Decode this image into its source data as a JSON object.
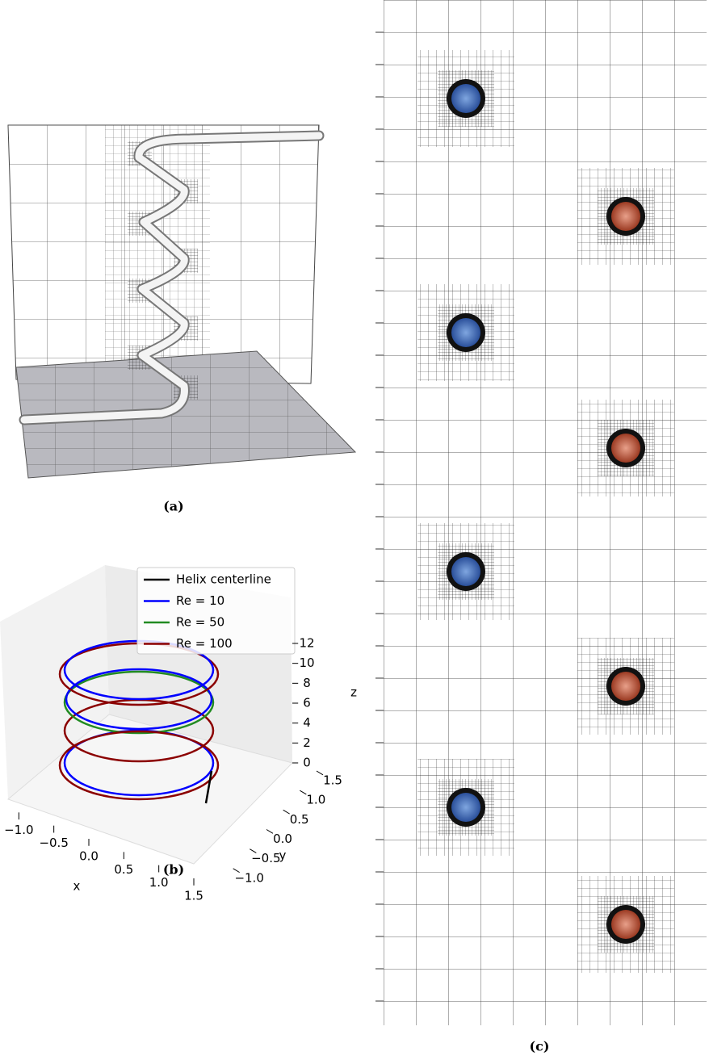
{
  "panels": [
    {
      "label": "(a)"
    },
    {
      "label": "(b)"
    },
    {
      "label": "(c)"
    }
  ],
  "chart_data": {
    "type": "line3d",
    "series": [
      {
        "name": "Helix centerline",
        "color": "#000000"
      },
      {
        "name": "Re = 10",
        "color": "#0000ff"
      },
      {
        "name": "Re = 50",
        "color": "#228b22"
      },
      {
        "name": "Re = 100",
        "color": "#8b0000"
      }
    ],
    "xlabel": "x",
    "ylabel": "y",
    "zlabel": "z",
    "xlim": [
      -1.5,
      1.5
    ],
    "ylim": [
      -1.5,
      1.5
    ],
    "zlim": [
      0,
      12
    ],
    "xticks": [
      {
        "value": -1,
        "label": "−1.0"
      },
      {
        "value": -0.5,
        "label": "−0.5"
      },
      {
        "value": 0,
        "label": "0.0"
      },
      0.5,
      {
        "value": 1,
        "label": "1.0"
      },
      1.5
    ],
    "yticks": [
      {
        "value": -1,
        "label": "−1.0"
      },
      {
        "value": -0.5,
        "label": "−0.5"
      },
      {
        "value": 0,
        "label": "0.0"
      },
      0.5,
      {
        "value": 1,
        "label": "1.0"
      },
      1.5
    ],
    "zticks": [
      0,
      2,
      4,
      6,
      8,
      10,
      12
    ]
  }
}
